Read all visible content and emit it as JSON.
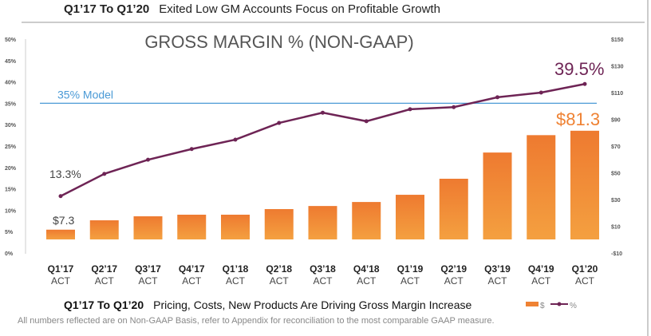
{
  "header": {
    "bold": "Q1’17 To Q1’20",
    "text": "Exited Low GM Accounts Focus on Profitable Growth"
  },
  "chart_data": {
    "type": "bar+line",
    "title": "GROSS MARGIN % (NON-GAAP)",
    "categories": [
      "Q1’17",
      "Q2’17",
      "Q3’17",
      "Q4’17",
      "Q1’18",
      "Q2’18",
      "Q3’18",
      "Q4’18",
      "Q1’19",
      "Q2’19",
      "Q3’19",
      "Q4’19",
      "Q1’20"
    ],
    "category_sublabel": "ACT",
    "series": [
      {
        "name": "$",
        "type": "bar",
        "axis": "right",
        "color": "#ef8233",
        "values": [
          7.3,
          14.3,
          17.3,
          18.5,
          18.5,
          22.7,
          25.0,
          28.0,
          33.4,
          45.4,
          65.0,
          78.0,
          81.3
        ]
      },
      {
        "name": "%",
        "type": "line",
        "axis": "left",
        "color": "#6e2455",
        "values": [
          13.3,
          18.5,
          21.8,
          24.3,
          26.5,
          30.4,
          32.8,
          30.8,
          33.6,
          34.1,
          36.4,
          37.5,
          39.5
        ]
      }
    ],
    "left_axis": {
      "ylim": [
        0,
        50
      ],
      "ticks": [
        "0%",
        "5%",
        "10%",
        "15%",
        "20%",
        "25%",
        "30%",
        "35%",
        "40%",
        "45%",
        "50%"
      ]
    },
    "right_axis": {
      "ylim": [
        -10,
        150
      ],
      "ticks": [
        "-$10",
        "$10",
        "$30",
        "$50",
        "$70",
        "$90",
        "$110",
        "$130",
        "$150"
      ]
    },
    "reference_line": {
      "value": 35,
      "label": "35% Model",
      "color": "#4a9ad6"
    },
    "annotations": {
      "first_pct": "13.3%",
      "last_pct": "39.5%",
      "first_usd": "$7.3",
      "last_usd": "$81.3"
    },
    "legend": {
      "placement": "bottom-right",
      "items": [
        "$",
        "%"
      ]
    },
    "grid": false
  },
  "footer": {
    "bold": "Q1’17 To Q1’20",
    "headline": "Pricing, Costs, New Products Are Driving Gross Margin Increase",
    "note": "All numbers reflected are on Non-GAAP Basis, refer to Appendix for reconciliation to the most comparable GAAP measure."
  }
}
